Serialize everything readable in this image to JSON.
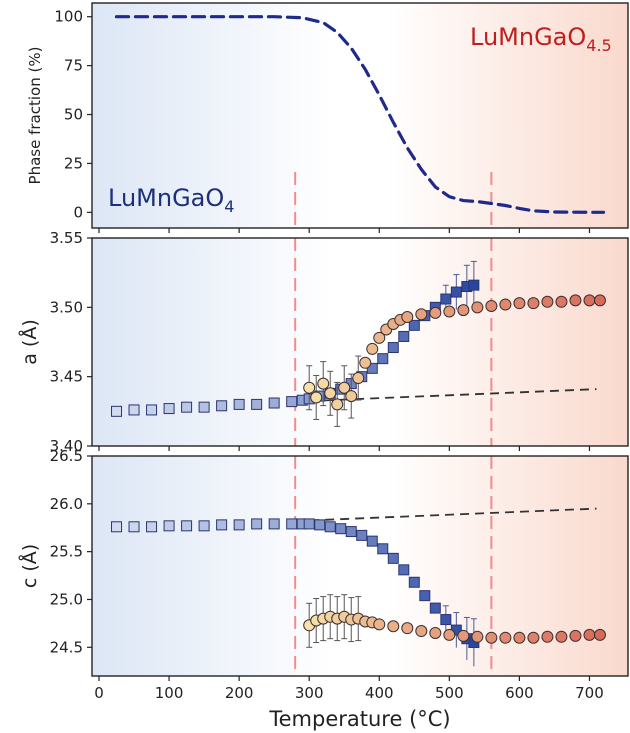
{
  "colors": {
    "blue_bg": "#dfe8f6",
    "red_bg": "#fbe0d7",
    "dash_blue": "#1f2a8a",
    "vline": "#f08c8c",
    "trend": "#333333",
    "label_blue": "#1d2f7a",
    "label_red": "#c21e1e"
  },
  "labels": {
    "left_phase": "LuMnGaO",
    "left_sub": "4",
    "right_phase": "LuMnGaO",
    "right_sub": "4.5"
  },
  "chart_data": [
    {
      "type": "line",
      "ylabel": "Phase fraction (%)",
      "xlim": [
        -10,
        755
      ],
      "ylim": [
        -8,
        107
      ],
      "yticks": [
        0,
        25,
        50,
        75,
        100
      ],
      "series": [
        {
          "x": [
            25,
            100,
            200,
            250,
            290,
            320,
            340,
            360,
            380,
            400,
            420,
            440,
            460,
            480,
            500,
            520,
            540,
            560,
            580,
            600,
            620,
            650,
            700,
            720
          ],
          "y": [
            100,
            100,
            100,
            100,
            99.5,
            97,
            92,
            84,
            73,
            60,
            46,
            33,
            22,
            13,
            8,
            6,
            5.5,
            4.5,
            3.5,
            2,
            0.8,
            0.2,
            0,
            0
          ]
        }
      ],
      "vlines": [
        280,
        560
      ]
    },
    {
      "type": "scatter",
      "ylabel": "a (Å)",
      "xlim": [
        -10,
        755
      ],
      "ylim": [
        3.4,
        3.55
      ],
      "yticks": [
        3.4,
        3.45,
        3.5,
        3.55
      ],
      "tick_labels": [
        "3.40",
        "3.45",
        "3.50",
        "3.55"
      ],
      "trend": {
        "x": [
          280,
          710
        ],
        "y": [
          3.432,
          3.441
        ]
      },
      "vlines": [
        280,
        560
      ],
      "series": [
        {
          "name": "square",
          "x": [
            25,
            50,
            75,
            100,
            125,
            150,
            175,
            200,
            225,
            250,
            275,
            290,
            300,
            315,
            330,
            345,
            360,
            375,
            390,
            405,
            420,
            435,
            450,
            465,
            480,
            495,
            510,
            525,
            535
          ],
          "y": [
            3.425,
            3.426,
            3.426,
            3.427,
            3.428,
            3.428,
            3.429,
            3.43,
            3.43,
            3.431,
            3.432,
            3.433,
            3.434,
            3.436,
            3.438,
            3.441,
            3.445,
            3.45,
            3.456,
            3.463,
            3.471,
            3.479,
            3.487,
            3.494,
            3.5,
            3.506,
            3.511,
            3.515,
            3.516
          ]
        },
        {
          "name": "circle",
          "x": [
            300,
            310,
            320,
            330,
            340,
            350,
            360,
            370,
            380,
            390,
            400,
            410,
            420,
            430,
            440,
            460,
            480,
            500,
            520,
            540,
            560,
            580,
            600,
            620,
            640,
            660,
            680,
            700,
            715
          ],
          "y": [
            3.442,
            3.435,
            3.445,
            3.438,
            3.43,
            3.442,
            3.436,
            3.449,
            3.46,
            3.47,
            3.478,
            3.484,
            3.488,
            3.491,
            3.493,
            3.495,
            3.496,
            3.497,
            3.498,
            3.5,
            3.501,
            3.502,
            3.503,
            3.503,
            3.504,
            3.504,
            3.505,
            3.505,
            3.505
          ]
        }
      ]
    },
    {
      "type": "scatter",
      "ylabel": "c (Å)",
      "xlabel": "Temperature (°C)",
      "xlim": [
        -10,
        755
      ],
      "ylim": [
        24.2,
        26.5
      ],
      "yticks": [
        24.5,
        25.0,
        25.5,
        26.0,
        26.5
      ],
      "tick_labels": [
        "24.5",
        "25.0",
        "25.5",
        "26.0",
        "26.5"
      ],
      "xticks": [
        0,
        100,
        200,
        300,
        400,
        500,
        600,
        700
      ],
      "trend": {
        "x": [
          280,
          710
        ],
        "y": [
          25.82,
          25.95
        ]
      },
      "vlines": [
        280,
        560
      ],
      "series": [
        {
          "name": "square",
          "x": [
            25,
            50,
            75,
            100,
            125,
            150,
            175,
            200,
            225,
            250,
            275,
            290,
            300,
            315,
            330,
            345,
            360,
            375,
            390,
            405,
            420,
            435,
            450,
            465,
            480,
            495,
            510,
            525,
            535
          ],
          "y": [
            25.76,
            25.76,
            25.76,
            25.77,
            25.77,
            25.77,
            25.78,
            25.78,
            25.79,
            25.79,
            25.79,
            25.79,
            25.79,
            25.78,
            25.76,
            25.74,
            25.71,
            25.67,
            25.61,
            25.53,
            25.43,
            25.31,
            25.18,
            25.04,
            24.91,
            24.79,
            24.68,
            24.59,
            24.55
          ]
        },
        {
          "name": "circle",
          "x": [
            300,
            310,
            320,
            330,
            340,
            350,
            360,
            370,
            380,
            390,
            400,
            420,
            440,
            460,
            480,
            500,
            520,
            540,
            560,
            580,
            600,
            620,
            640,
            660,
            680,
            700,
            715
          ],
          "y": [
            24.73,
            24.78,
            24.8,
            24.82,
            24.8,
            24.82,
            24.79,
            24.8,
            24.77,
            24.76,
            24.74,
            24.72,
            24.7,
            24.67,
            24.65,
            24.63,
            24.62,
            24.61,
            24.6,
            24.6,
            24.6,
            24.6,
            24.61,
            24.61,
            24.62,
            24.63,
            24.63
          ]
        }
      ]
    }
  ]
}
